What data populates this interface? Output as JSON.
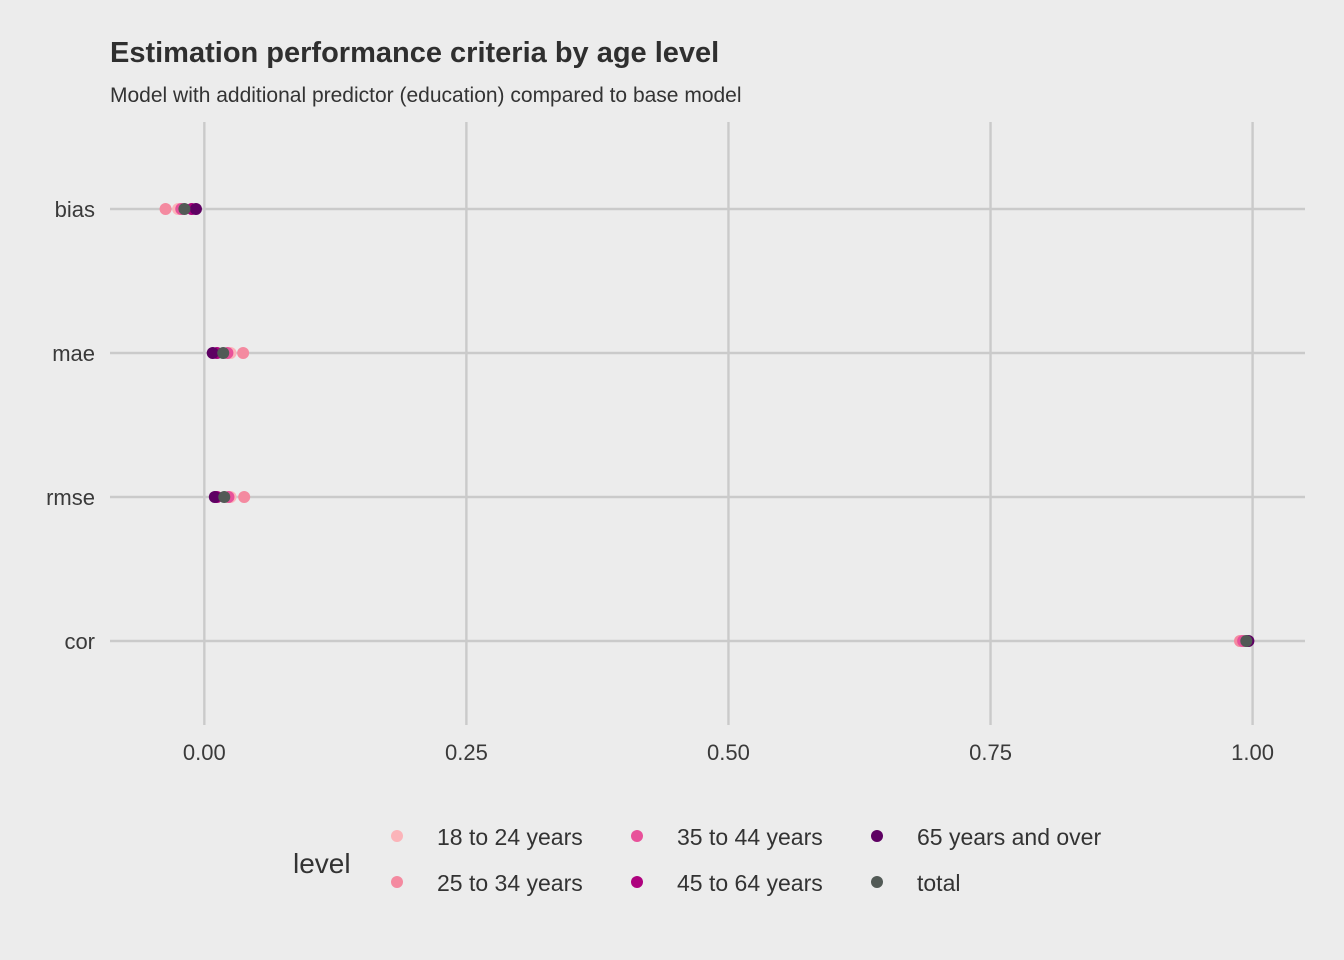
{
  "chart_data": {
    "type": "scatter",
    "title": "Estimation performance criteria by age level",
    "subtitle": "Model with additional predictor (education) compared to base model",
    "xlabel": "",
    "ylabel": "",
    "xlim": [
      -0.09,
      1.05
    ],
    "x_ticks": [
      0.0,
      0.25,
      0.5,
      0.75,
      1.0
    ],
    "x_tick_labels": [
      "0.00",
      "0.25",
      "0.50",
      "0.75",
      "1.00"
    ],
    "categories": [
      "bias",
      "mae",
      "rmse",
      "cor"
    ],
    "grid": true,
    "legend_title": "level",
    "legend_position": "bottom",
    "series": [
      {
        "name": "18 to 24 years",
        "color": "#fbb4b9",
        "values": [
          -0.025,
          0.025,
          0.025,
          0.99
        ]
      },
      {
        "name": "25 to 34 years",
        "color": "#f48aa0",
        "values": [
          -0.037,
          0.037,
          0.038,
          0.988
        ]
      },
      {
        "name": "35 to 44 years",
        "color": "#e8519a",
        "values": [
          -0.022,
          0.022,
          0.023,
          0.991
        ]
      },
      {
        "name": "45 to 64 years",
        "color": "#ae017e",
        "values": [
          -0.012,
          0.012,
          0.012,
          0.995
        ]
      },
      {
        "name": "65 years and over",
        "color": "#5e0163",
        "values": [
          -0.008,
          0.008,
          0.01,
          0.996
        ]
      },
      {
        "name": "total",
        "color": "#525a56",
        "values": [
          -0.019,
          0.018,
          0.019,
          0.994
        ]
      }
    ]
  }
}
